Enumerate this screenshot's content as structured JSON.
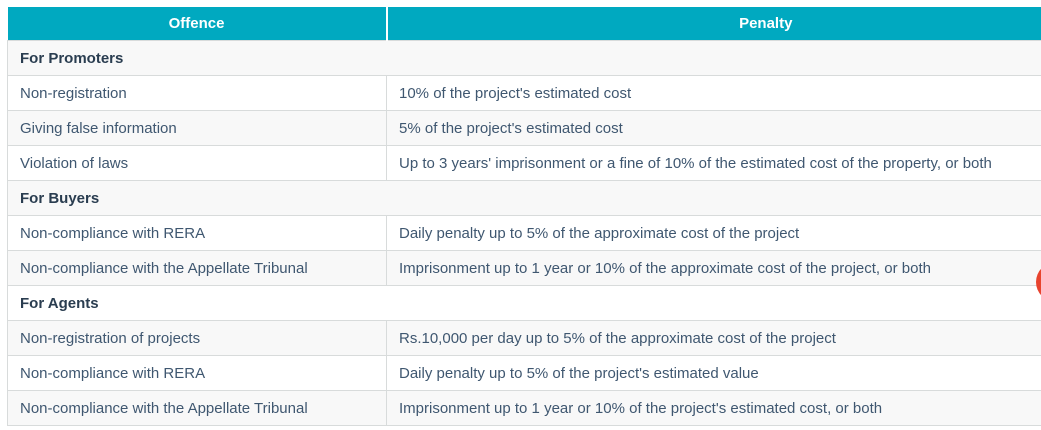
{
  "colors": {
    "header_bg": "#00A9C0",
    "header_text": "#ffffff",
    "row_alt_bg": "#f8f8f8",
    "row_bg": "#ffffff",
    "border": "#d8dbdb",
    "body_text": "#3f5770",
    "section_text": "#2a3d50",
    "edge_widget_red": "#E8432E"
  },
  "table": {
    "header": {
      "offence": "Offence",
      "penalty": "Penalty"
    },
    "rows": [
      {
        "type": "section",
        "label": "For Promoters"
      },
      {
        "type": "data",
        "offence": "Non-registration",
        "penalty": "10% of the project's estimated cost"
      },
      {
        "type": "data",
        "offence": "Giving false information",
        "penalty": "5% of the project's estimated cost"
      },
      {
        "type": "data",
        "offence": "Violation of laws",
        "penalty": "Up to 3 years' imprisonment or a fine of 10% of the estimated cost of the property, or both"
      },
      {
        "type": "section",
        "label": "For Buyers"
      },
      {
        "type": "data",
        "offence": "Non-compliance with RERA",
        "penalty": "Daily penalty up to 5% of the approximate cost of the project"
      },
      {
        "type": "data",
        "offence": "Non-compliance with the Appellate Tribunal",
        "penalty": "Imprisonment up to 1 year or 10% of the approximate cost of the project, or both"
      },
      {
        "type": "section",
        "label": "For Agents"
      },
      {
        "type": "data",
        "offence": "Non-registration of projects",
        "penalty": "Rs.10,000 per day up to 5% of the approximate cost of the project"
      },
      {
        "type": "data",
        "offence": "Non-compliance with RERA",
        "penalty": "Daily penalty up to 5% of the project's estimated value"
      },
      {
        "type": "data",
        "offence": "Non-compliance with the Appellate Tribunal",
        "penalty": "Imprisonment up to 1 year or 10% of the project's estimated cost, or both"
      }
    ]
  }
}
